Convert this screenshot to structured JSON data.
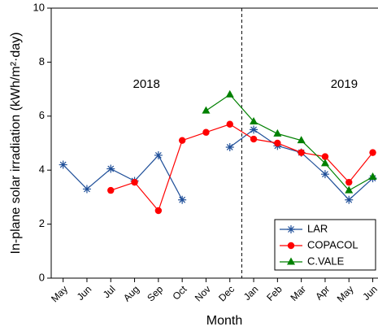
{
  "chart_data": {
    "type": "line",
    "x_label": "Month",
    "y_label": "In-plane solar irradiation (kWh/m²·day)",
    "categories": [
      "May",
      "Jun",
      "Jul",
      "Aug",
      "Sep",
      "Oct",
      "Nov",
      "Dec",
      "Jan",
      "Feb",
      "Mar",
      "Apr",
      "May",
      "Jun"
    ],
    "series": [
      {
        "name": "LAR",
        "color": "#1f4f99",
        "marker": "star",
        "values": [
          4.2,
          3.3,
          4.05,
          3.6,
          4.55,
          2.9,
          null,
          4.85,
          5.5,
          4.9,
          4.65,
          3.85,
          2.9,
          3.7
        ]
      },
      {
        "name": "COPACOL",
        "color": "#ff0000",
        "marker": "circle",
        "values": [
          null,
          null,
          3.25,
          3.55,
          2.5,
          5.1,
          5.4,
          5.7,
          5.15,
          5.0,
          4.65,
          4.5,
          3.55,
          4.65
        ]
      },
      {
        "name": "C.VALE",
        "color": "#008000",
        "marker": "triangle",
        "values": [
          null,
          null,
          null,
          null,
          null,
          null,
          6.2,
          6.8,
          5.8,
          5.35,
          5.1,
          4.25,
          3.25,
          3.75
        ]
      }
    ],
    "ylim": [
      0,
      10
    ],
    "yticks": [
      0,
      2,
      4,
      6,
      8,
      10
    ],
    "annotations": [
      "2018",
      "2019"
    ],
    "legend": "lower right"
  }
}
